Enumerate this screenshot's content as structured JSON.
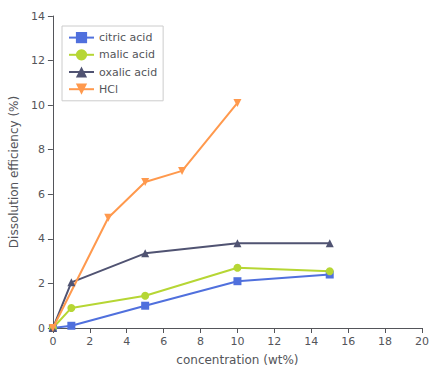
{
  "chart_data": {
    "type": "line",
    "xlabel": "concentration (wt%)",
    "ylabel": "Dissolution efficiency (%)",
    "series": [
      {
        "name": "citric acid",
        "marker": "square",
        "x": [
          0,
          1,
          5,
          10,
          15
        ],
        "values": [
          0,
          0.1,
          1.0,
          2.1,
          2.4
        ]
      },
      {
        "name": "malic acid",
        "marker": "circle",
        "x": [
          0,
          1,
          5,
          10,
          15
        ],
        "values": [
          0,
          0.9,
          1.45,
          2.7,
          2.55
        ]
      },
      {
        "name": "oxalic acid",
        "marker": "triangle",
        "x": [
          0,
          1,
          5,
          10,
          15
        ],
        "values": [
          0,
          2.05,
          3.35,
          3.8,
          3.8
        ]
      },
      {
        "name": "HCl",
        "marker": "down-triangle",
        "x": [
          0,
          3,
          5,
          7,
          10
        ],
        "values": [
          0,
          4.95,
          6.55,
          7.05,
          10.1
        ]
      }
    ],
    "xlim": [
      0,
      20
    ],
    "xticks": [
      0,
      2,
      4,
      6,
      8,
      10,
      12,
      14,
      16,
      18,
      20
    ],
    "ylim": [
      0,
      14
    ],
    "yticks": [
      0,
      2,
      4,
      6,
      8,
      10,
      12,
      14
    ],
    "grid": false,
    "legend": "upper left"
  }
}
